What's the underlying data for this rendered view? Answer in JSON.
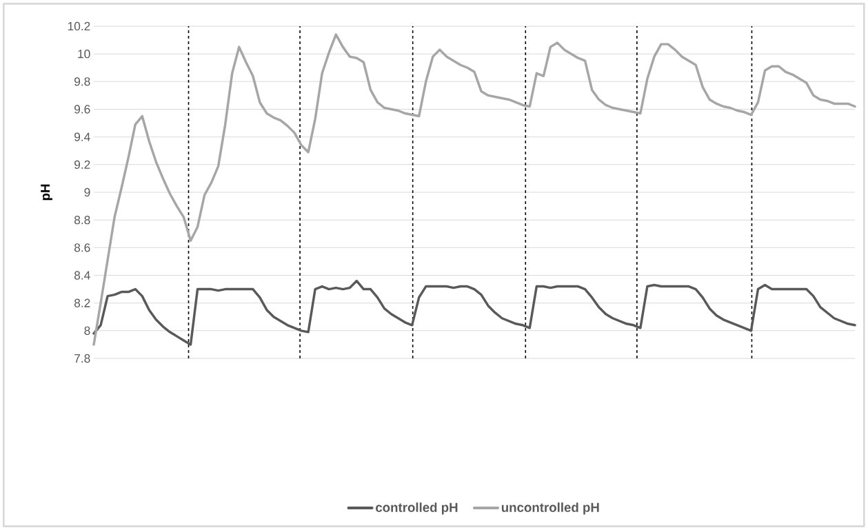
{
  "chart_data": {
    "type": "line",
    "ylabel": "pH",
    "categories": [
      null,
      null,
      null,
      null,
      null,
      null,
      null,
      null,
      null,
      null,
      null,
      null,
      null,
      null,
      null,
      null,
      null,
      null,
      null,
      null,
      null,
      null,
      null,
      null,
      null,
      null,
      null,
      null,
      null,
      null,
      null,
      null,
      null,
      null,
      null,
      null,
      null,
      null,
      null,
      null,
      null,
      null,
      null,
      null,
      null,
      null,
      null,
      null,
      null,
      null,
      null,
      null,
      null,
      null,
      null,
      null,
      null,
      null,
      null,
      null,
      null,
      null,
      null,
      null,
      null,
      null,
      null,
      null,
      null,
      null,
      null,
      null,
      null,
      null,
      null,
      null,
      null,
      null,
      null,
      null,
      null,
      null,
      null,
      null,
      null,
      null,
      null,
      null,
      null,
      null,
      null,
      null,
      null,
      null,
      null,
      null,
      null,
      null,
      null,
      null,
      null,
      null,
      null,
      null,
      null,
      null,
      null,
      null,
      null,
      null,
      null
    ],
    "series": [
      {
        "name": "controlled pH",
        "color": "#595959",
        "values": [
          7.98,
          8.04,
          8.25,
          8.26,
          8.28,
          8.28,
          8.3,
          8.25,
          8.15,
          8.08,
          8.03,
          7.99,
          7.96,
          7.93,
          7.9,
          8.3,
          8.3,
          8.3,
          8.29,
          8.3,
          8.3,
          8.3,
          8.3,
          8.3,
          8.24,
          8.15,
          8.1,
          8.07,
          8.04,
          8.02,
          8.0,
          7.99,
          8.3,
          8.32,
          8.3,
          8.31,
          8.3,
          8.31,
          8.36,
          8.3,
          8.3,
          8.24,
          8.16,
          8.12,
          8.09,
          8.06,
          8.04,
          8.24,
          8.32,
          8.32,
          8.32,
          8.32,
          8.31,
          8.32,
          8.32,
          8.3,
          8.26,
          8.18,
          8.13,
          8.09,
          8.07,
          8.05,
          8.04,
          8.02,
          8.32,
          8.32,
          8.31,
          8.32,
          8.32,
          8.32,
          8.32,
          8.3,
          8.24,
          8.17,
          8.12,
          8.09,
          8.07,
          8.05,
          8.04,
          8.02,
          8.32,
          8.33,
          8.32,
          8.32,
          8.32,
          8.32,
          8.32,
          8.3,
          8.24,
          8.16,
          8.11,
          8.08,
          8.06,
          8.04,
          8.02,
          8.0,
          8.3,
          8.33,
          8.3,
          8.3,
          8.3,
          8.3,
          8.3,
          8.3,
          8.25,
          8.17,
          8.13,
          8.09,
          8.07,
          8.05,
          8.04
        ]
      },
      {
        "name": "uncontrolled pH",
        "color": "#a6a6a6",
        "values": [
          7.9,
          8.2,
          8.51,
          8.82,
          9.03,
          9.25,
          9.49,
          9.55,
          9.37,
          9.22,
          9.1,
          8.99,
          8.9,
          8.82,
          8.65,
          8.75,
          8.98,
          9.07,
          9.19,
          9.49,
          9.86,
          10.05,
          9.94,
          9.84,
          9.65,
          9.57,
          9.54,
          9.52,
          9.48,
          9.43,
          9.34,
          9.29,
          9.53,
          9.86,
          10.01,
          10.14,
          10.05,
          9.98,
          9.97,
          9.94,
          9.74,
          9.65,
          9.61,
          9.6,
          9.59,
          9.57,
          9.56,
          9.55,
          9.8,
          9.98,
          10.03,
          9.98,
          9.95,
          9.92,
          9.9,
          9.87,
          9.73,
          9.7,
          9.69,
          9.68,
          9.67,
          9.65,
          9.63,
          9.62,
          9.86,
          9.84,
          10.05,
          10.08,
          10.03,
          10.0,
          9.97,
          9.95,
          9.74,
          9.67,
          9.63,
          9.61,
          9.6,
          9.59,
          9.58,
          9.57,
          9.82,
          9.98,
          10.07,
          10.07,
          10.03,
          9.98,
          9.95,
          9.92,
          9.76,
          9.67,
          9.64,
          9.62,
          9.61,
          9.59,
          9.58,
          9.56,
          9.65,
          9.88,
          9.91,
          9.91,
          9.87,
          9.85,
          9.82,
          9.79,
          9.7,
          9.67,
          9.66,
          9.64,
          9.64,
          9.64,
          9.62
        ]
      }
    ],
    "ylim": [
      7.8,
      10.2
    ],
    "yticks": [
      7.8,
      8,
      8.2,
      8.4,
      8.6,
      8.8,
      9,
      9.2,
      9.4,
      9.6,
      9.8,
      10,
      10.2
    ],
    "grid": "y",
    "legend": "bottom",
    "marker": "none",
    "line_style": "solid"
  }
}
